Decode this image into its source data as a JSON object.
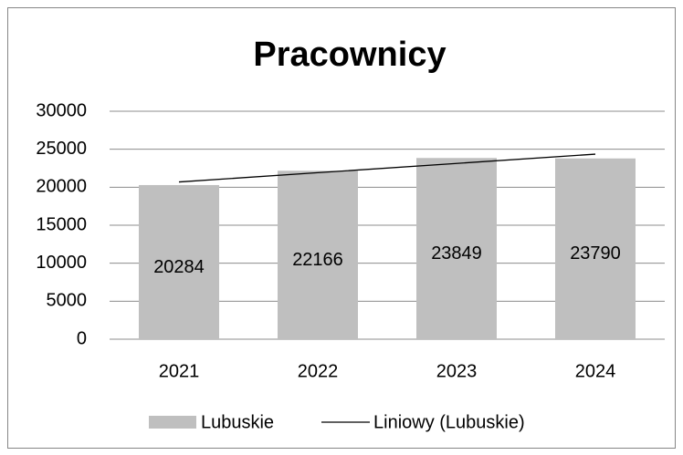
{
  "chart_data": {
    "type": "bar",
    "title": "Pracownicy",
    "categories": [
      "2021",
      "2022",
      "2023",
      "2024"
    ],
    "series": [
      {
        "name": "Lubuskie",
        "color": "#bfbfbf",
        "values": [
          20284,
          22166,
          23849,
          23790
        ]
      },
      {
        "name": "Liniowy (Lubuskie)",
        "type": "line",
        "color": "#000000",
        "values": [
          20692,
          21912,
          23132,
          24352
        ]
      }
    ],
    "ylim": [
      0,
      30000
    ],
    "yticks": [
      0,
      5000,
      10000,
      15000,
      20000,
      25000,
      30000
    ],
    "grid": true,
    "legend": "bottom",
    "data_labels": true
  }
}
